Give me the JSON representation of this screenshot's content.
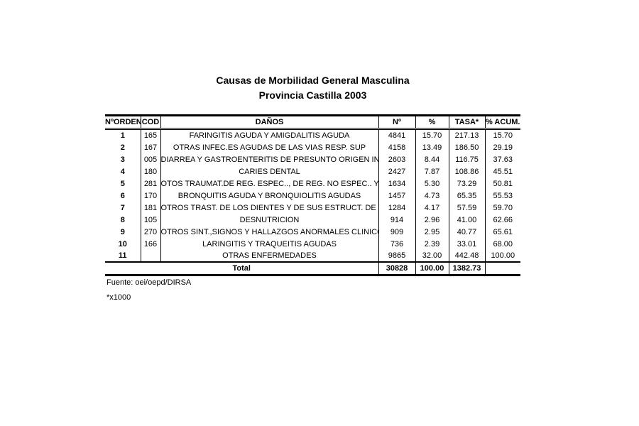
{
  "title": {
    "line1": "Causas de Morbilidad General Masculina",
    "line2": "Provincia Castilla 2003"
  },
  "table": {
    "headers": {
      "orden": "NºORDEN",
      "cod": "COD",
      "danos": "DAÑOS",
      "n": "Nº",
      "pct": "%",
      "tasa": "TASA*",
      "pct_acum": "% ACUM."
    },
    "rows": [
      {
        "orden": "1",
        "cod": "165",
        "danos": "FARINGITIS AGUDA Y AMIGDALITIS AGUDA",
        "n": "4841",
        "pct": "15.70",
        "tasa": "217.13",
        "pct_acum": "15.70"
      },
      {
        "orden": "2",
        "cod": "167",
        "danos": "OTRAS INFEC.ES AGUDAS DE LAS VIAS RESP. SUP",
        "n": "4158",
        "pct": "13.49",
        "tasa": "186.50",
        "pct_acum": "29.19"
      },
      {
        "orden": "3",
        "cod": "005",
        "danos": "DIARREA Y GASTROENTERITIS DE PRESUNTO ORIGEN INFECC",
        "n": "2603",
        "pct": "8.44",
        "tasa": "116.75",
        "pct_acum": "37.63"
      },
      {
        "orden": "4",
        "cod": "180",
        "danos": "CARIES DENTAL",
        "n": "2427",
        "pct": "7.87",
        "tasa": "108.86",
        "pct_acum": "45.51"
      },
      {
        "orden": "5",
        "cod": "281",
        "danos": "OTOS TRAUMAT.DE REG. ESPEC.., DE REG. NO ESPEC.. Y DE",
        "n": "1634",
        "pct": "5.30",
        "tasa": "73.29",
        "pct_acum": "50.81"
      },
      {
        "orden": "6",
        "cod": "170",
        "danos": "BRONQUITIS AGUDA Y BRONQUIOLITIS AGUDAS",
        "n": "1457",
        "pct": "4.73",
        "tasa": "65.35",
        "pct_acum": "55.53"
      },
      {
        "orden": "7",
        "cod": "181",
        "danos": "OTROS TRAST. DE LOS DIENTES Y DE SUS ESTRUCT. DE SOS",
        "n": "1284",
        "pct": "4.17",
        "tasa": "57.59",
        "pct_acum": "59.70"
      },
      {
        "orden": "8",
        "cod": "105",
        "danos": "DESNUTRICION",
        "n": "914",
        "pct": "2.96",
        "tasa": "41.00",
        "pct_acum": "62.66"
      },
      {
        "orden": "9",
        "cod": "270",
        "danos": "OTROS SINT.,SIGNOS Y HALLAZGOS ANORMALES CLINICOS",
        "n": "909",
        "pct": "2.95",
        "tasa": "40.77",
        "pct_acum": "65.61"
      },
      {
        "orden": "10",
        "cod": "166",
        "danos": "LARINGITIS Y TRAQUEITIS AGUDAS",
        "n": "736",
        "pct": "2.39",
        "tasa": "33.01",
        "pct_acum": "68.00"
      },
      {
        "orden": "11",
        "cod": "",
        "danos": "OTRAS ENFERMEDADES",
        "n": "9865",
        "pct": "32.00",
        "tasa": "442.48",
        "pct_acum": "100.00"
      }
    ],
    "total": {
      "label": "Total",
      "n": "30828",
      "pct": "100.00",
      "tasa": "1382.73",
      "pct_acum": ""
    }
  },
  "footer": {
    "source": "Fuente: oei/oepd/DIRSA",
    "note": "*x1000"
  }
}
